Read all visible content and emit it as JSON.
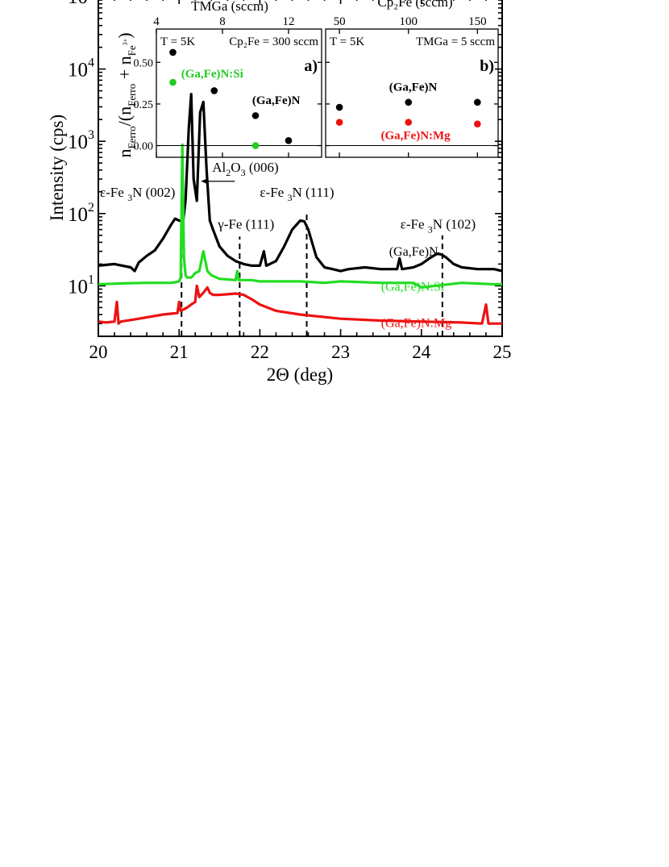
{
  "chart_data": [
    {
      "type": "line",
      "panel": "main",
      "xlabel": "2Θ (deg)",
      "ylabel": "Intensity (cps)",
      "xlim": [
        20,
        25
      ],
      "ylim": [
        2,
        100000
      ],
      "yscale": "log",
      "x_ticks": [
        20,
        21,
        22,
        23,
        24,
        25
      ],
      "y_ticks": [
        {
          "value": 10,
          "base": "10",
          "exp": "1"
        },
        {
          "value": 100,
          "base": "10",
          "exp": "2"
        },
        {
          "value": 1000,
          "base": "10",
          "exp": "3"
        },
        {
          "value": 10000,
          "base": "10",
          "exp": "4"
        }
      ],
      "series": [
        {
          "name": "(Ga,Fe)N",
          "color": "#000000",
          "x": [
            20.0,
            20.2,
            20.4,
            20.45,
            20.5,
            20.6,
            20.7,
            20.8,
            20.9,
            20.95,
            21.0,
            21.05,
            21.08,
            21.12,
            21.15,
            21.18,
            21.22,
            21.26,
            21.3,
            21.34,
            21.38,
            21.42,
            21.5,
            21.6,
            21.7,
            21.8,
            21.9,
            22.0,
            22.05,
            22.08,
            22.2,
            22.3,
            22.4,
            22.5,
            22.55,
            22.6,
            22.7,
            22.8,
            22.9,
            23.0,
            23.1,
            23.3,
            23.5,
            23.7,
            23.73,
            23.76,
            23.9,
            24.0,
            24.1,
            24.2,
            24.25,
            24.3,
            24.4,
            24.5,
            24.7,
            24.9,
            25.0
          ],
          "y": [
            19,
            20,
            18,
            16,
            21,
            26,
            31,
            45,
            70,
            85,
            80,
            78,
            150,
            1500,
            4500,
            300,
            150,
            2500,
            3500,
            400,
            80,
            60,
            35,
            26,
            22,
            20,
            19,
            19,
            30,
            19,
            22,
            35,
            60,
            80,
            78,
            60,
            25,
            18,
            17,
            16,
            17,
            18,
            17,
            17,
            24,
            17,
            18,
            20,
            24,
            28,
            27,
            25,
            20,
            18,
            17,
            17,
            16
          ]
        },
        {
          "name": "(Ga,Fe)N:Si",
          "color": "#22dd22",
          "x": [
            20.0,
            20.3,
            20.6,
            20.9,
            20.95,
            21.0,
            21.02,
            21.04,
            21.06,
            21.08,
            21.1,
            21.15,
            21.2,
            21.25,
            21.3,
            21.35,
            21.4,
            21.5,
            21.7,
            21.72,
            21.74,
            21.9,
            22.0,
            22.2,
            22.5,
            22.8,
            23.0,
            23.5,
            23.9,
            24.0,
            24.5,
            24.9,
            25.0
          ],
          "y": [
            10.5,
            10.8,
            11,
            11,
            11.2,
            11.5,
            13,
            900,
            25,
            14,
            13,
            13,
            15,
            16,
            30,
            16,
            14,
            12.5,
            12,
            16,
            12,
            12,
            11.5,
            11.5,
            11.5,
            11,
            11.5,
            11,
            11,
            9.5,
            11,
            10.5,
            10.5
          ]
        },
        {
          "name": "(Ga,Fe)N:Mg",
          "color": "#ee1111",
          "x": [
            20.0,
            20.1,
            20.2,
            20.23,
            20.25,
            20.28,
            20.5,
            20.8,
            20.98,
            21.0,
            21.02,
            21.1,
            21.15,
            21.2,
            21.22,
            21.25,
            21.3,
            21.35,
            21.38,
            21.42,
            21.5,
            21.7,
            21.8,
            21.9,
            22.0,
            22.2,
            22.5,
            23.0,
            23.5,
            24.0,
            24.5,
            24.75,
            24.8,
            24.83,
            25.0
          ],
          "y": [
            3.2,
            3.1,
            3.2,
            6,
            3.0,
            3.2,
            3.5,
            4,
            4.2,
            6,
            4.5,
            5,
            5.5,
            6,
            10,
            7,
            8,
            9.5,
            8,
            7.5,
            7.5,
            7.8,
            7.5,
            6.5,
            5.5,
            4.5,
            4,
            3.5,
            3.3,
            3.2,
            3.1,
            3.0,
            5.5,
            3.0,
            3.0
          ]
        }
      ],
      "series_labels": [
        {
          "text": "(Ga,Fe)N",
          "color": "#000000",
          "x": 23.6,
          "y": 26
        },
        {
          "text": "(Ga,Fe)N:Si",
          "color": "#22dd22",
          "x": 23.5,
          "y": 8.5
        },
        {
          "text": "(Ga,Fe)N:Mg",
          "color": "#ee1111",
          "x": 23.5,
          "y": 2.7
        }
      ],
      "reference_lines": [
        {
          "x": 21.03,
          "y_from": 2,
          "y_to": 105
        },
        {
          "x": 21.75,
          "y_from": 2,
          "y_to": 48
        },
        {
          "x": 22.58,
          "y_from": 2,
          "y_to": 110
        },
        {
          "x": 24.26,
          "y_from": 2,
          "y_to": 50
        }
      ],
      "annotations": [
        {
          "base": "ε-Fe ",
          "sub": "3",
          "rest": "N (002)",
          "x": 20.02,
          "y": 170
        },
        {
          "base": "γ-Fe (111)",
          "sub": "",
          "rest": "",
          "x": 21.48,
          "y": 62
        },
        {
          "base": "ε-Fe ",
          "sub": "3",
          "rest": "N (111)",
          "x": 22.0,
          "y": 170
        },
        {
          "base": "ε-Fe ",
          "sub": "3",
          "rest": "N (102)",
          "x": 23.74,
          "y": 62
        },
        {
          "base": "Al",
          "sub": "2",
          "rest": "O",
          "sub2": "3",
          "rest2": " (006)",
          "x": 21.41,
          "y": 380,
          "arrow_to_x": 21.27,
          "arrow_y": 280
        }
      ]
    },
    {
      "type": "scatter",
      "panel": "a)",
      "xlabel": "TMGa (sccm)",
      "xlim": [
        4,
        14
      ],
      "ylim": [
        -0.07,
        0.7
      ],
      "x_ticks": [
        4,
        8,
        12
      ],
      "y_ticks": [
        0.0,
        0.25,
        0.5
      ],
      "y_tick_labels": [
        "0.00",
        "0.25",
        "0.50"
      ],
      "note_left": "T = 5K",
      "note_right": "Cp₂Fe = 300 sccm",
      "panel_label": "a)",
      "series": [
        {
          "name": "(Ga,Fe)N",
          "color": "#000000",
          "x": [
            5,
            7.5,
            10,
            12
          ],
          "y": [
            0.56,
            0.33,
            0.18,
            0.03
          ]
        },
        {
          "name": "(Ga,Fe)N:Si",
          "color": "#22cc22",
          "x": [
            5,
            10
          ],
          "y": [
            0.38,
            0.0
          ]
        }
      ],
      "series_labels": [
        {
          "text": "(Ga,Fe)N:Si",
          "color": "#22cc22",
          "x": 5.5,
          "y": 0.41
        },
        {
          "text": "(Ga,Fe)N",
          "color": "#000000",
          "x": 9.8,
          "y": 0.25
        }
      ]
    },
    {
      "type": "scatter",
      "panel": "b)",
      "xlabel": "Cp₂Fe (sccm)",
      "xlim": [
        40,
        165
      ],
      "ylim": [
        -0.07,
        0.7
      ],
      "x_ticks": [
        50,
        100,
        150
      ],
      "note_left": "T = 5K",
      "note_right": "TMGa = 5 sccm",
      "panel_label": "b)",
      "series": [
        {
          "name": "(Ga,Fe)N",
          "color": "#000000",
          "x": [
            50,
            100,
            150
          ],
          "y": [
            0.23,
            0.26,
            0.26
          ]
        },
        {
          "name": "(Ga,Fe)N:Mg",
          "color": "#ee1111",
          "x": [
            50,
            100,
            150
          ],
          "y": [
            0.14,
            0.14,
            0.13
          ]
        }
      ],
      "series_labels": [
        {
          "text": "(Ga,Fe)N",
          "color": "#000000",
          "x": 86,
          "y": 0.33
        },
        {
          "text": "(Ga,Fe)N:Mg",
          "color": "#ee1111",
          "x": 80,
          "y": 0.04
        }
      ]
    }
  ],
  "inset_ylabel": {
    "n": "n",
    "ferro": "Ferro",
    "mid": "/(n",
    "ferro2": "Ferro",
    "plus": " + n",
    "fe": "Fe",
    "sup": "3+",
    "close": ")"
  }
}
